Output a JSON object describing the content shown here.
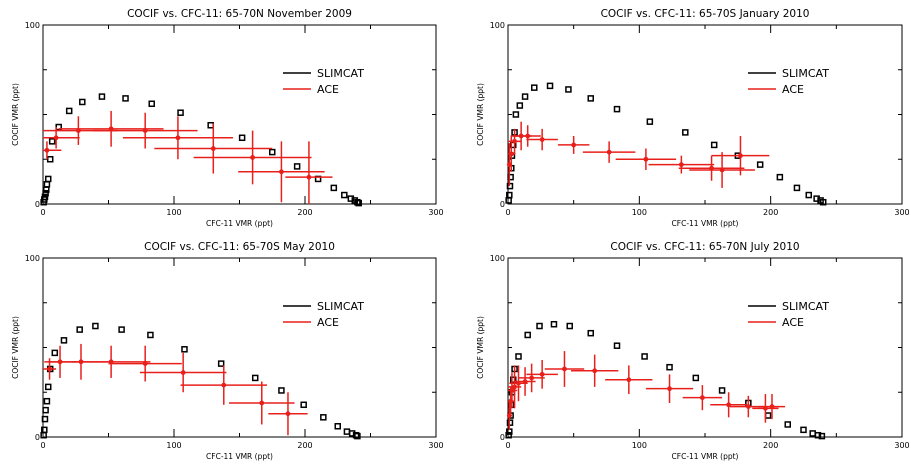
{
  "figure": {
    "panels": [
      {
        "title": "COCIF vs. CFC-11: 65-70N November 2009",
        "xlabel": "CFC-11 VMR (ppt)",
        "ylabel": "COCIF VMR (ppt)",
        "x_ticks": [
          "0",
          "100",
          "200",
          "300"
        ],
        "y_ticks": [
          "0",
          "100"
        ],
        "legend": [
          "SLIMCAT",
          "ACE"
        ]
      },
      {
        "title": "COCIF vs. CFC-11: 65-70S January 2010",
        "xlabel": "CFC-11 VMR (ppt)",
        "ylabel": "COCIF VMR (ppt)",
        "x_ticks": [
          "0",
          "100",
          "200",
          "300"
        ],
        "y_ticks": [
          "0",
          "100"
        ],
        "legend": [
          "SLIMCAT",
          "ACE"
        ]
      },
      {
        "title": "COCIF vs. CFC-11: 65-70S May 2010",
        "xlabel": "CFC-11 VMR (ppt)",
        "ylabel": "COCIF VMR (ppt)",
        "x_ticks": [
          "0",
          "100",
          "200",
          "300"
        ],
        "y_ticks": [
          "0",
          "100"
        ],
        "legend": [
          "SLIMCAT",
          "ACE"
        ]
      },
      {
        "title": "COCIF vs. CFC-11: 65-70N July 2010",
        "xlabel": "CFC-11 VMR (ppt)",
        "ylabel": "COCIF VMR (ppt)",
        "x_ticks": [
          "0",
          "100",
          "200",
          "300"
        ],
        "y_ticks": [
          "0",
          "100"
        ],
        "legend": [
          "SLIMCAT",
          "ACE"
        ]
      }
    ]
  },
  "colors": {
    "slimcat": "#000000",
    "ace": "#e8201c",
    "axes": "#000000"
  },
  "chart_data": [
    {
      "type": "scatter",
      "title": "COCIF vs. CFC-11: 65-70N November 2009",
      "xlabel": "CFC-11 VMR (ppt)",
      "ylabel": "COCIF VMR (ppt)",
      "xlim": [
        0,
        300
      ],
      "ylim": [
        0,
        100
      ],
      "legend_position": "right",
      "series": [
        {
          "name": "SLIMCAT",
          "marker": "open-square",
          "points": [
            [
              0.5,
              1
            ],
            [
              1,
              2.5
            ],
            [
              1.5,
              4
            ],
            [
              2,
              6
            ],
            [
              2.5,
              8
            ],
            [
              3,
              11
            ],
            [
              4,
              14
            ],
            [
              5.5,
              25
            ],
            [
              7,
              35
            ],
            [
              12,
              43
            ],
            [
              20,
              52
            ],
            [
              30,
              57
            ],
            [
              45,
              60
            ],
            [
              63,
              59
            ],
            [
              83,
              56
            ],
            [
              105,
              51
            ],
            [
              128,
              44
            ],
            [
              152,
              37
            ],
            [
              175,
              29
            ],
            [
              194,
              21
            ],
            [
              210,
              14
            ],
            [
              222,
              9
            ],
            [
              230,
              5
            ],
            [
              235,
              3
            ],
            [
              238,
              2
            ],
            [
              240,
              1
            ],
            [
              241,
              0.5
            ]
          ]
        },
        {
          "name": "ACE",
          "marker": "filled-circle-with-errorbars",
          "points": [
            {
              "x": 3,
              "y": 30,
              "xerr": 11,
              "yerr": 5
            },
            {
              "x": 10,
              "y": 37,
              "xerr": 18,
              "yerr": 6
            },
            {
              "x": 27,
              "y": 41,
              "xerr": 30,
              "yerr": 8
            },
            {
              "x": 52,
              "y": 42,
              "xerr": 40,
              "yerr": 10
            },
            {
              "x": 78,
              "y": 41,
              "xerr": 40,
              "yerr": 10
            },
            {
              "x": 103,
              "y": 37,
              "xerr": 42,
              "yerr": 12
            },
            {
              "x": 130,
              "y": 31,
              "xerr": 45,
              "yerr": 14
            },
            {
              "x": 160,
              "y": 26,
              "xerr": 45,
              "yerr": 15
            },
            {
              "x": 182,
              "y": 18,
              "xerr": 33,
              "yerr": 17
            },
            {
              "x": 203,
              "y": 15,
              "xerr": 18,
              "yerr": 20
            }
          ]
        }
      ]
    },
    {
      "type": "scatter",
      "title": "COCIF vs. CFC-11: 65-70S January 2010",
      "xlabel": "CFC-11 VMR (ppt)",
      "ylabel": "COCIF VMR (ppt)",
      "xlim": [
        0,
        300
      ],
      "ylim": [
        0,
        100
      ],
      "legend_position": "right",
      "series": [
        {
          "name": "SLIMCAT",
          "marker": "open-square",
          "points": [
            [
              0.5,
              2
            ],
            [
              1,
              5
            ],
            [
              1.5,
              10
            ],
            [
              2,
              15
            ],
            [
              2.5,
              20
            ],
            [
              3,
              27
            ],
            [
              4,
              33
            ],
            [
              5,
              40
            ],
            [
              6,
              50
            ],
            [
              9,
              55
            ],
            [
              13,
              60
            ],
            [
              20,
              65
            ],
            [
              32,
              66
            ],
            [
              46,
              64
            ],
            [
              63,
              59
            ],
            [
              83,
              53
            ],
            [
              108,
              46
            ],
            [
              135,
              40
            ],
            [
              157,
              33
            ],
            [
              175,
              27
            ],
            [
              192,
              22
            ],
            [
              207,
              15
            ],
            [
              220,
              9
            ],
            [
              229,
              5
            ],
            [
              235,
              3
            ],
            [
              238,
              2
            ],
            [
              240,
              1
            ]
          ]
        },
        {
          "name": "ACE",
          "marker": "filled-circle-with-errorbars",
          "points": [
            {
              "x": 1,
              "y": 22,
              "xerr": 2,
              "yerr": 12
            },
            {
              "x": 2.5,
              "y": 28,
              "xerr": 3,
              "yerr": 10
            },
            {
              "x": 5,
              "y": 35,
              "xerr": 5,
              "yerr": 7
            },
            {
              "x": 10,
              "y": 38,
              "xerr": 8,
              "yerr": 8
            },
            {
              "x": 15,
              "y": 38,
              "xerr": 10,
              "yerr": 6
            },
            {
              "x": 26,
              "y": 36,
              "xerr": 12,
              "yerr": 6
            },
            {
              "x": 50,
              "y": 33,
              "xerr": 12,
              "yerr": 5
            },
            {
              "x": 77,
              "y": 29,
              "xerr": 20,
              "yerr": 6
            },
            {
              "x": 105,
              "y": 25,
              "xerr": 23,
              "yerr": 6
            },
            {
              "x": 132,
              "y": 22,
              "xerr": 25,
              "yerr": 5
            },
            {
              "x": 155,
              "y": 20,
              "xerr": 25,
              "yerr": 7
            },
            {
              "x": 163,
              "y": 19,
              "xerr": 25,
              "yerr": 10
            },
            {
              "x": 177,
              "y": 27,
              "xerr": 22,
              "yerr": 11
            }
          ]
        }
      ]
    },
    {
      "type": "scatter",
      "title": "COCIF vs. CFC-11: 65-70S May 2010",
      "xlabel": "CFC-11 VMR (ppt)",
      "ylabel": "COCIF VMR (ppt)",
      "xlim": [
        0,
        300
      ],
      "ylim": [
        0,
        100
      ],
      "legend_position": "right",
      "series": [
        {
          "name": "SLIMCAT",
          "marker": "open-square",
          "points": [
            [
              0.5,
              1
            ],
            [
              1,
              4
            ],
            [
              1.5,
              10
            ],
            [
              2,
              15
            ],
            [
              3,
              20
            ],
            [
              4,
              28
            ],
            [
              5.5,
              38
            ],
            [
              9,
              47
            ],
            [
              16,
              54
            ],
            [
              28,
              60
            ],
            [
              40,
              62
            ],
            [
              60,
              60
            ],
            [
              82,
              57
            ],
            [
              108,
              49
            ],
            [
              136,
              41
            ],
            [
              162,
              33
            ],
            [
              182,
              26
            ],
            [
              199,
              18
            ],
            [
              214,
              11
            ],
            [
              225,
              6
            ],
            [
              232,
              3
            ],
            [
              236,
              2
            ],
            [
              239,
              1
            ],
            [
              240,
              0.5
            ]
          ]
        },
        {
          "name": "ACE",
          "marker": "filled-circle-with-errorbars",
          "points": [
            {
              "x": 5,
              "y": 38,
              "xerr": 5,
              "yerr": 6
            },
            {
              "x": 13,
              "y": 42,
              "xerr": 12,
              "yerr": 9
            },
            {
              "x": 29,
              "y": 42,
              "xerr": 25,
              "yerr": 10
            },
            {
              "x": 52,
              "y": 42,
              "xerr": 30,
              "yerr": 9
            },
            {
              "x": 78,
              "y": 41,
              "xerr": 28,
              "yerr": 10
            },
            {
              "x": 107,
              "y": 36,
              "xerr": 33,
              "yerr": 11
            },
            {
              "x": 138,
              "y": 29,
              "xerr": 33,
              "yerr": 11
            },
            {
              "x": 167,
              "y": 19,
              "xerr": 25,
              "yerr": 12
            },
            {
              "x": 187,
              "y": 13,
              "xerr": 15,
              "yerr": 12
            }
          ]
        }
      ]
    },
    {
      "type": "scatter",
      "title": "COCIF vs. CFC-11: 65-70N July 2010",
      "xlabel": "CFC-11 VMR (ppt)",
      "ylabel": "COCIF VMR (ppt)",
      "xlim": [
        0,
        300
      ],
      "ylim": [
        0,
        100
      ],
      "legend_position": "right",
      "series": [
        {
          "name": "SLIMCAT",
          "marker": "open-square",
          "points": [
            [
              0.5,
              1
            ],
            [
              1,
              3
            ],
            [
              1.5,
              8
            ],
            [
              2,
              12
            ],
            [
              2.5,
              18
            ],
            [
              3,
              25
            ],
            [
              4,
              32
            ],
            [
              5,
              38
            ],
            [
              8,
              45
            ],
            [
              15,
              57
            ],
            [
              24,
              62
            ],
            [
              35,
              63
            ],
            [
              47,
              62
            ],
            [
              63,
              58
            ],
            [
              83,
              51
            ],
            [
              104,
              45
            ],
            [
              123,
              39
            ],
            [
              143,
              33
            ],
            [
              163,
              26
            ],
            [
              183,
              19
            ],
            [
              198,
              12
            ],
            [
              213,
              7
            ],
            [
              225,
              4
            ],
            [
              232,
              2
            ],
            [
              236,
              1
            ],
            [
              239,
              0.5
            ]
          ]
        },
        {
          "name": "ACE",
          "marker": "filled-circle-with-errorbars",
          "points": [
            {
              "x": 1,
              "y": 12,
              "xerr": 2,
              "yerr": 8
            },
            {
              "x": 2,
              "y": 20,
              "xerr": 3,
              "yerr": 8
            },
            {
              "x": 3,
              "y": 26,
              "xerr": 4,
              "yerr": 10
            },
            {
              "x": 5,
              "y": 28,
              "xerr": 5,
              "yerr": 12
            },
            {
              "x": 8,
              "y": 30,
              "xerr": 7,
              "yerr": 10
            },
            {
              "x": 13,
              "y": 31,
              "xerr": 8,
              "yerr": 8
            },
            {
              "x": 18,
              "y": 33,
              "xerr": 10,
              "yerr": 8
            },
            {
              "x": 26,
              "y": 35,
              "xerr": 12,
              "yerr": 8
            },
            {
              "x": 43,
              "y": 38,
              "xerr": 15,
              "yerr": 10
            },
            {
              "x": 66,
              "y": 37,
              "xerr": 18,
              "yerr": 9
            },
            {
              "x": 92,
              "y": 32,
              "xerr": 18,
              "yerr": 8
            },
            {
              "x": 123,
              "y": 27,
              "xerr": 18,
              "yerr": 8
            },
            {
              "x": 148,
              "y": 22,
              "xerr": 15,
              "yerr": 7
            },
            {
              "x": 168,
              "y": 18,
              "xerr": 14,
              "yerr": 7
            },
            {
              "x": 183,
              "y": 17,
              "xerr": 14,
              "yerr": 6
            },
            {
              "x": 196,
              "y": 16,
              "xerr": 10,
              "yerr": 8
            },
            {
              "x": 201,
              "y": 17,
              "xerr": 10,
              "yerr": 7
            }
          ]
        }
      ]
    }
  ]
}
